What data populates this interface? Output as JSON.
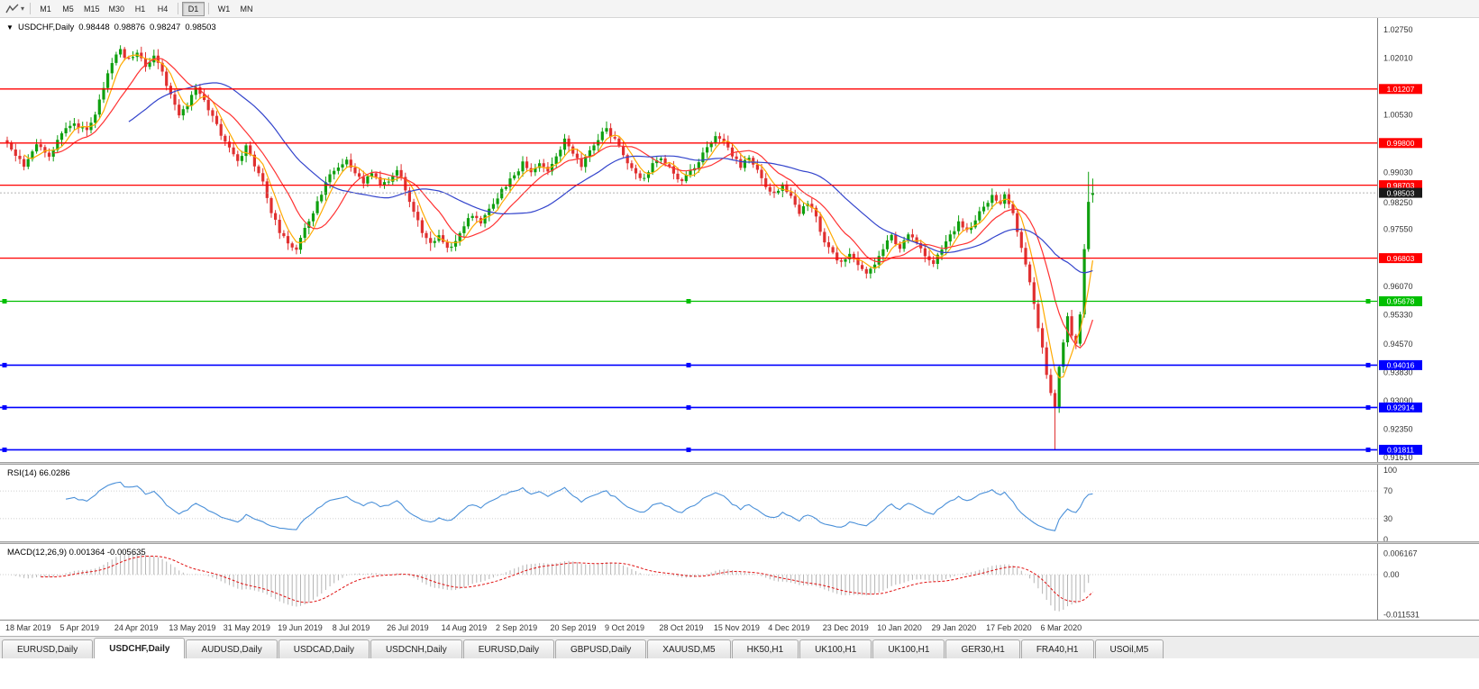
{
  "toolbar": {
    "chart_tools_icon": "zigzag-icon",
    "dropdown_icon": "chevron-down-icon",
    "timeframes": [
      "M1",
      "M5",
      "M15",
      "M30",
      "H1",
      "H4",
      "D1",
      "W1",
      "MN"
    ],
    "active_timeframe": "D1"
  },
  "main_chart": {
    "collapse_icon": "triangle-down-icon",
    "symbol": "USDCHF,Daily",
    "open": "0.98448",
    "high": "0.98876",
    "low": "0.98247",
    "close": "0.98503"
  },
  "rsi_pane": {
    "label": "RSI(14) 66.0286"
  },
  "macd_pane": {
    "label": "MACD(12,26,9) 0.001364 -0.005635"
  },
  "price_axis": {
    "current_label": "0.98503"
  },
  "tabs": [
    "EURUSD,Daily",
    "USDCHF,Daily",
    "AUDUSD,Daily",
    "USDCAD,Daily",
    "USDCNH,Daily",
    "EURUSD,Daily",
    "GBPUSD,Daily",
    "XAUUSD,M5",
    "HK50,H1",
    "UK100,H1",
    "UK100,H1",
    "GER30,H1",
    "FRA40,H1",
    "USOil,M5"
  ],
  "active_tab_index": 1,
  "colors": {
    "up": "#0fa00f",
    "down": "#e03030",
    "rsi": "#4a90d9",
    "macd_hist": "#b5b5b5",
    "macd_signal": "#e01010",
    "current_label_bg": "#1a1a1a"
  },
  "chart_data": {
    "type": "candlestick",
    "symbol": "USDCHF",
    "timeframe": "Daily",
    "ohlc_display": {
      "open": 0.98448,
      "high": 0.98876,
      "low": 0.98247,
      "close": 0.98503
    },
    "current_price": 0.98503,
    "price_range": [
      0.9161,
      1.0275
    ],
    "num_candles": 260,
    "price_ticks": [
      "1.02750",
      "1.02010",
      "1.00530",
      "0.99030",
      "0.98250",
      "0.97550",
      "0.96070",
      "0.95330",
      "0.94570",
      "0.93830",
      "0.93090",
      "0.92350",
      "0.91610"
    ],
    "x_ticks": [
      {
        "day": 0,
        "label": "18 Mar 2019"
      },
      {
        "day": 13,
        "label": "5 Apr 2019"
      },
      {
        "day": 26,
        "label": "24 Apr 2019"
      },
      {
        "day": 39,
        "label": "13 May 2019"
      },
      {
        "day": 52,
        "label": "31 May 2019"
      },
      {
        "day": 65,
        "label": "19 Jun 2019"
      },
      {
        "day": 78,
        "label": "8 Jul 2019"
      },
      {
        "day": 91,
        "label": "26 Jul 2019"
      },
      {
        "day": 104,
        "label": "14 Aug 2019"
      },
      {
        "day": 117,
        "label": "2 Sep 2019"
      },
      {
        "day": 130,
        "label": "20 Sep 2019"
      },
      {
        "day": 143,
        "label": "9 Oct 2019"
      },
      {
        "day": 156,
        "label": "28 Oct 2019"
      },
      {
        "day": 169,
        "label": "15 Nov 2019"
      },
      {
        "day": 182,
        "label": "4 Dec 2019"
      },
      {
        "day": 195,
        "label": "23 Dec 2019"
      },
      {
        "day": 208,
        "label": "10 Jan 2020"
      },
      {
        "day": 221,
        "label": "29 Jan 2020"
      },
      {
        "day": 234,
        "label": "17 Feb 2020"
      },
      {
        "day": 247,
        "label": "6 Mar 2020"
      }
    ],
    "close_anchors": [
      [
        0,
        0.9985
      ],
      [
        2,
        0.9948
      ],
      [
        4,
        0.9922
      ],
      [
        7,
        0.9972
      ],
      [
        10,
        0.9945
      ],
      [
        13,
        1.0005
      ],
      [
        16,
        1.0032
      ],
      [
        19,
        1.0012
      ],
      [
        21,
        1.0058
      ],
      [
        23,
        1.0128
      ],
      [
        25,
        1.0188
      ],
      [
        27,
        1.0222
      ],
      [
        29,
        1.0195
      ],
      [
        31,
        1.0215
      ],
      [
        33,
        1.018
      ],
      [
        35,
        1.0205
      ],
      [
        37,
        1.016
      ],
      [
        39,
        1.0105
      ],
      [
        41,
        1.0048
      ],
      [
        43,
        1.0082
      ],
      [
        45,
        1.0122
      ],
      [
        47,
        1.0092
      ],
      [
        49,
        1.0052
      ],
      [
        51,
        1.0005
      ],
      [
        53,
        0.9972
      ],
      [
        55,
        0.9938
      ],
      [
        57,
        0.9968
      ],
      [
        59,
        0.9922
      ],
      [
        61,
        0.9878
      ],
      [
        63,
        0.9795
      ],
      [
        65,
        0.9752
      ],
      [
        67,
        0.9722
      ],
      [
        69,
        0.97
      ],
      [
        71,
        0.9756
      ],
      [
        73,
        0.98
      ],
      [
        75,
        0.985
      ],
      [
        77,
        0.9895
      ],
      [
        79,
        0.9922
      ],
      [
        81,
        0.9936
      ],
      [
        83,
        0.9902
      ],
      [
        85,
        0.9868
      ],
      [
        87,
        0.9906
      ],
      [
        89,
        0.9876
      ],
      [
        91,
        0.9882
      ],
      [
        93,
        0.9912
      ],
      [
        95,
        0.9862
      ],
      [
        97,
        0.9802
      ],
      [
        99,
        0.9748
      ],
      [
        101,
        0.9716
      ],
      [
        103,
        0.9738
      ],
      [
        105,
        0.9706
      ],
      [
        107,
        0.9726
      ],
      [
        109,
        0.9766
      ],
      [
        111,
        0.9792
      ],
      [
        113,
        0.9772
      ],
      [
        115,
        0.9806
      ],
      [
        117,
        0.9842
      ],
      [
        119,
        0.9872
      ],
      [
        121,
        0.99
      ],
      [
        123,
        0.9926
      ],
      [
        125,
        0.9902
      ],
      [
        127,
        0.9932
      ],
      [
        129,
        0.9908
      ],
      [
        131,
        0.9944
      ],
      [
        133,
        0.9986
      ],
      [
        135,
        0.995
      ],
      [
        137,
        0.9922
      ],
      [
        139,
        0.9958
      ],
      [
        141,
        0.9992
      ],
      [
        143,
        1.0015
      ],
      [
        145,
        0.9985
      ],
      [
        147,
        0.9952
      ],
      [
        149,
        0.9912
      ],
      [
        151,
        0.9882
      ],
      [
        153,
        0.9908
      ],
      [
        155,
        0.9938
      ],
      [
        157,
        0.993
      ],
      [
        159,
        0.9902
      ],
      [
        161,
        0.9876
      ],
      [
        163,
        0.9906
      ],
      [
        165,
        0.9936
      ],
      [
        167,
        0.9966
      ],
      [
        169,
        1.0005
      ],
      [
        171,
        0.9982
      ],
      [
        173,
        0.9948
      ],
      [
        175,
        0.9916
      ],
      [
        177,
        0.9942
      ],
      [
        179,
        0.9906
      ],
      [
        181,
        0.9868
      ],
      [
        183,
        0.9846
      ],
      [
        185,
        0.987
      ],
      [
        187,
        0.9836
      ],
      [
        189,
        0.9802
      ],
      [
        191,
        0.9826
      ],
      [
        193,
        0.9786
      ],
      [
        195,
        0.9722
      ],
      [
        197,
        0.9692
      ],
      [
        199,
        0.9666
      ],
      [
        201,
        0.9692
      ],
      [
        203,
        0.9662
      ],
      [
        205,
        0.9636
      ],
      [
        207,
        0.9666
      ],
      [
        209,
        0.971
      ],
      [
        211,
        0.9736
      ],
      [
        213,
        0.9706
      ],
      [
        215,
        0.9742
      ],
      [
        217,
        0.9722
      ],
      [
        219,
        0.9692
      ],
      [
        221,
        0.9668
      ],
      [
        223,
        0.9702
      ],
      [
        225,
        0.9742
      ],
      [
        227,
        0.9772
      ],
      [
        229,
        0.9748
      ],
      [
        231,
        0.9782
      ],
      [
        233,
        0.9818
      ],
      [
        235,
        0.9842
      ],
      [
        237,
        0.9822
      ],
      [
        238,
        0.9848
      ],
      [
        239,
        0.9828
      ],
      [
        240,
        0.9792
      ],
      [
        241,
        0.9752
      ],
      [
        242,
        0.9706
      ],
      [
        243,
        0.9662
      ],
      [
        244,
        0.9616
      ],
      [
        245,
        0.9562
      ],
      [
        246,
        0.9502
      ],
      [
        247,
        0.9442
      ],
      [
        248,
        0.9382
      ],
      [
        249,
        0.9322
      ],
      [
        250,
        0.9292
      ],
      [
        251,
        0.9392
      ],
      [
        252,
        0.9462
      ],
      [
        253,
        0.9522
      ],
      [
        254,
        0.9482
      ],
      [
        255,
        0.9452
      ],
      [
        256,
        0.9532
      ],
      [
        257,
        0.9702
      ],
      [
        258,
        0.9822
      ],
      [
        259,
        0.98503
      ]
    ],
    "candle_overrides": [
      {
        "day": 69,
        "low": 0.969
      },
      {
        "day": 101,
        "low": 0.9699
      },
      {
        "day": 105,
        "low": 0.9695
      },
      {
        "day": 250,
        "low": 0.91811
      },
      {
        "day": 258,
        "high": 0.9905
      },
      {
        "day": 259,
        "open": 0.98448,
        "high": 0.98876,
        "low": 0.98247,
        "close": 0.98503
      }
    ],
    "levels": [
      {
        "price": 1.01207,
        "color": "#ff0000",
        "label": "1.01207",
        "width": 1.3
      },
      {
        "price": 0.998,
        "color": "#ff0000",
        "label": "0.99800",
        "width": 1.3
      },
      {
        "price": 0.98703,
        "color": "#ff0000",
        "label": "0.98703",
        "width": 1.3
      },
      {
        "price": 0.96803,
        "color": "#ff0000",
        "label": "0.96803",
        "width": 1.3
      },
      {
        "price": 0.95678,
        "color": "#00bf00",
        "label": "0.95678",
        "width": 1.2,
        "handles": true
      },
      {
        "price": 0.94016,
        "color": "#0000ff",
        "label": "0.94016",
        "width": 1.6,
        "handles": true
      },
      {
        "price": 0.92914,
        "color": "#0000ff",
        "label": "0.92914",
        "width": 1.6,
        "handles": true
      },
      {
        "price": 0.91811,
        "color": "#0000ff",
        "label": "0.91811",
        "width": 1.6,
        "handles": true
      }
    ],
    "moving_averages": [
      {
        "period": 5,
        "color": "#ffaa00"
      },
      {
        "period": 12,
        "color": "#ff3333"
      },
      {
        "period": 30,
        "color": "#3344cc"
      }
    ],
    "rsi": {
      "period": 14,
      "current": 66.0286,
      "range": [
        0,
        100
      ],
      "levels": [
        70,
        30
      ],
      "ticks": [
        {
          "v": 100,
          "label": "100"
        },
        {
          "v": 70,
          "label": "70"
        },
        {
          "v": 30,
          "label": "30"
        },
        {
          "v": 0,
          "label": "0"
        }
      ]
    },
    "macd": {
      "fast": 12,
      "slow": 26,
      "signal": 9,
      "current_macd": 0.001364,
      "current_signal": -0.005635,
      "range": [
        -0.011531,
        0.006167
      ],
      "ticks": [
        {
          "v": 0.006167,
          "label": "0.006167"
        },
        {
          "v": 0,
          "label": "0.00"
        },
        {
          "v": -0.011531,
          "label": "-0.011531"
        }
      ]
    }
  }
}
